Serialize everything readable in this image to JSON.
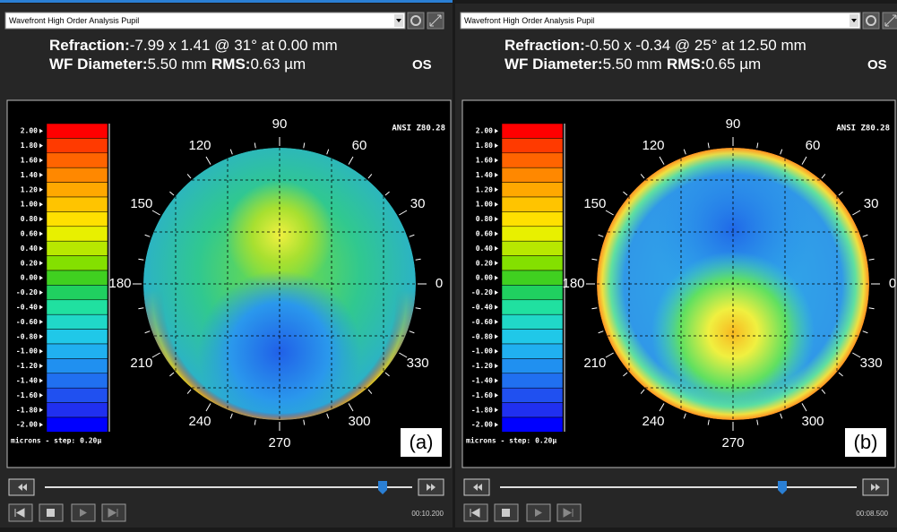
{
  "panels": [
    {
      "dropdown": "Wavefront High Order Analysis Pupil",
      "refraction_label": "Refraction:",
      "refraction_value": "-7.99 x 1.41 @ 31° at 0.00 mm",
      "wf_label": "WF Diameter:",
      "wf_value": "5.50 mm",
      "rms_label": "RMS:",
      "rms_value": "0.63 µm",
      "eye": "OS",
      "standard": "ANSI Z80.28",
      "scale_labels": [
        "2.00",
        "1.80",
        "1.60",
        "1.40",
        "1.20",
        "1.00",
        "0.80",
        "0.60",
        "0.40",
        "0.20",
        "0.00",
        "-0.20",
        "-0.40",
        "-0.60",
        "-0.80",
        "-1.00",
        "-1.20",
        "-1.40",
        "-1.60",
        "-1.80",
        "-2.00"
      ],
      "scale_caption": "microns - step: 0.20µ",
      "angles": [
        "0",
        "30",
        "60",
        "90",
        "120",
        "150",
        "180",
        "210",
        "240",
        "270",
        "300",
        "330"
      ],
      "panel_label": "(a)",
      "time": "00:10.200"
    },
    {
      "dropdown": "Wavefront High Order Analysis Pupil",
      "refraction_label": "Refraction:",
      "refraction_value": "-0.50 x -0.34 @ 25° at 12.50 mm",
      "wf_label": "WF Diameter:",
      "wf_value": "5.50 mm",
      "rms_label": "RMS:",
      "rms_value": "0.65 µm",
      "eye": "OS",
      "standard": "ANSI Z80.28",
      "scale_labels": [
        "2.00",
        "1.80",
        "1.60",
        "1.40",
        "1.20",
        "1.00",
        "0.80",
        "0.60",
        "0.40",
        "0.20",
        "0.00",
        "-0.20",
        "-0.40",
        "-0.60",
        "-0.80",
        "-1.00",
        "-1.20",
        "-1.40",
        "-1.60",
        "-1.80",
        "-2.00"
      ],
      "scale_caption": "microns - step: 0.20µ",
      "angles": [
        "0",
        "30",
        "60",
        "90",
        "120",
        "150",
        "180",
        "210",
        "240",
        "270",
        "300",
        "330"
      ],
      "panel_label": "(b)",
      "time": "00:08.500"
    }
  ]
}
